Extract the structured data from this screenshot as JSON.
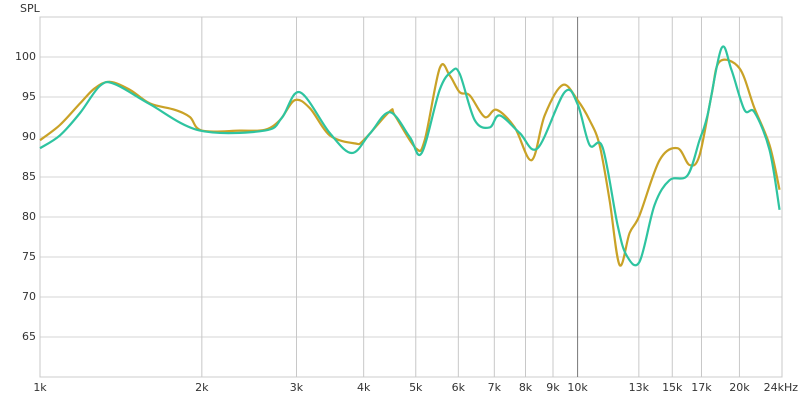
{
  "chart_data": {
    "type": "line",
    "y_label": "SPL",
    "xlim": [
      1000,
      24000
    ],
    "ylim": [
      60,
      105
    ],
    "log_x": true,
    "grid": true,
    "xticks": [
      {
        "value": 1000,
        "label": "1k"
      },
      {
        "value": 2000,
        "label": "2k"
      },
      {
        "value": 3000,
        "label": "3k"
      },
      {
        "value": 4000,
        "label": "4k"
      },
      {
        "value": 5000,
        "label": "5k"
      },
      {
        "value": 6000,
        "label": "6k"
      },
      {
        "value": 7000,
        "label": "7k"
      },
      {
        "value": 8000,
        "label": "8k"
      },
      {
        "value": 9000,
        "label": "9k"
      },
      {
        "value": 10000,
        "label": "10k"
      },
      {
        "value": 13000,
        "label": "13k"
      },
      {
        "value": 15000,
        "label": "15k"
      },
      {
        "value": 17000,
        "label": "17k"
      },
      {
        "value": 20000,
        "label": "20k"
      },
      {
        "value": 24000,
        "label": "24kHz"
      }
    ],
    "yticks": [
      65,
      70,
      75,
      80,
      85,
      90,
      95,
      100
    ],
    "series": [
      {
        "color": "#c9a227",
        "x": [
          1000,
          1089,
          1187,
          1265,
          1349,
          1470,
          1601,
          1781,
          1900,
          2000,
          2353,
          2619,
          2794,
          2978,
          3177,
          3459,
          3851,
          4000,
          4473,
          4570,
          5000,
          5195,
          5540,
          5782,
          6035,
          6301,
          6717,
          7071,
          7638,
          8213,
          8685,
          9379,
          10000,
          10527,
          10987,
          11468,
          11970,
          12495,
          13036,
          14206,
          15340,
          16150,
          16857,
          17742,
          18359,
          20000,
          21330,
          22750,
          23750
        ],
        "values": [
          89.6,
          91.5,
          94.2,
          96.1,
          96.9,
          95.9,
          94.2,
          93.4,
          92.5,
          90.8,
          90.8,
          90.9,
          92.1,
          94.6,
          93.6,
          90.2,
          89.2,
          89.6,
          93.2,
          92.7,
          88.6,
          89.6,
          98.6,
          97.7,
          95.6,
          95.2,
          92.5,
          93.4,
          91.2,
          87.1,
          92.7,
          96.5,
          94.6,
          92.1,
          89,
          82.1,
          74,
          78,
          80.2,
          87.1,
          88.6,
          86.5,
          87.7,
          95.2,
          99.4,
          98.6,
          93.6,
          89,
          83.4
        ]
      },
      {
        "color": "#2ec4a0",
        "x": [
          1000,
          1089,
          1187,
          1293,
          1379,
          1601,
          1984,
          2619,
          2818,
          3043,
          3459,
          3802,
          4106,
          4473,
          4873,
          5129,
          5540,
          5832,
          6035,
          6437,
          6862,
          7162,
          7803,
          8427,
          9458,
          10000,
          10527,
          11130,
          11866,
          12334,
          13036,
          13905,
          14826,
          16013,
          16857,
          17442,
          18519,
          19326,
          20431,
          21330,
          22750,
          23750
        ],
        "values": [
          88.6,
          90.2,
          93,
          96.4,
          96.6,
          94.1,
          90.8,
          90.8,
          92.4,
          95.6,
          90.5,
          88,
          90.4,
          93.1,
          90,
          88,
          95.9,
          98.2,
          97.9,
          92.1,
          91.2,
          92.7,
          90.5,
          88.6,
          95.6,
          94.1,
          89,
          88.7,
          79,
          75.2,
          74.4,
          81.5,
          84.6,
          85.2,
          89.6,
          92.7,
          101.1,
          98.4,
          93.4,
          93.1,
          88.4,
          80.9
        ]
      }
    ]
  }
}
